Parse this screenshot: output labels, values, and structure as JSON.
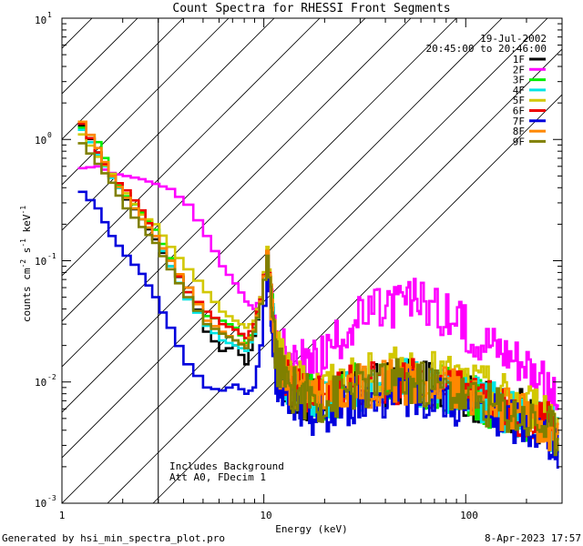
{
  "chart_data": {
    "type": "line",
    "title": "Count Spectra for RHESSI Front Segments",
    "xlabel": "Energy (keV)",
    "ylabel": {
      "base": "counts cm",
      "exp1": "-2",
      "mid": " s",
      "exp2": "-1",
      "tail": " keV",
      "exp3": "-1"
    },
    "x_scale": "log",
    "y_scale": "log",
    "xlim": [
      1,
      300
    ],
    "ylim": [
      0.001,
      10
    ],
    "x_tick_labels": [
      {
        "value": 1,
        "label": "1"
      },
      {
        "value": 10,
        "label": "10"
      },
      {
        "value": 100,
        "label": "100"
      }
    ],
    "y_tick_labels": [
      {
        "value": 0.001,
        "mantissa": "10",
        "exp": "-3"
      },
      {
        "value": 0.01,
        "mantissa": "10",
        "exp": "-2"
      },
      {
        "value": 0.1,
        "mantissa": "10",
        "exp": "-1"
      },
      {
        "value": 1,
        "mantissa": "10",
        "exp": "0"
      },
      {
        "value": 10,
        "mantissa": "10",
        "exp": "1"
      }
    ],
    "hatched_region_keV": [
      1,
      3
    ],
    "date": "19-Jul-2002",
    "time_range": "20:45:00 to 20:46:00",
    "annotations": [
      "Includes Background",
      "Att A0, FDecim 1"
    ],
    "footer_left": "Generated by hsi_min_spectra_plot.pro",
    "footer_right": "8-Apr-2023 17:57",
    "series": [
      {
        "name": "1F",
        "color": "#000000",
        "x": [
          1.2,
          1.45,
          1.7,
          2.0,
          2.4,
          2.8,
          3.3,
          4.0,
          5.0,
          6.0,
          7.0,
          8.0,
          8.8,
          9.5,
          10.3,
          10.8,
          11.5,
          13,
          15,
          17,
          20,
          25,
          30,
          40,
          50,
          60,
          80,
          100,
          130,
          160,
          200,
          250,
          290
        ],
        "y": [
          1.3,
          0.78,
          0.5,
          0.32,
          0.22,
          0.15,
          0.09,
          0.06,
          0.026,
          0.018,
          0.02,
          0.014,
          0.024,
          0.045,
          0.11,
          0.05,
          0.014,
          0.009,
          0.007,
          0.0075,
          0.0065,
          0.0085,
          0.009,
          0.0095,
          0.01,
          0.0095,
          0.009,
          0.0075,
          0.0065,
          0.006,
          0.0055,
          0.004,
          0.003
        ]
      },
      {
        "name": "2F",
        "color": "#ff00ff",
        "x": [
          1.2,
          1.45,
          1.7,
          2.0,
          2.4,
          2.8,
          3.3,
          4.0,
          5.0,
          6.0,
          7.0,
          8.0,
          8.8,
          9.5,
          10.3,
          10.8,
          11.5,
          13,
          15,
          17,
          20,
          25,
          30,
          40,
          50,
          60,
          80,
          100,
          130,
          160,
          200,
          250,
          290
        ],
        "y": [
          0.58,
          0.6,
          0.53,
          0.5,
          0.47,
          0.43,
          0.39,
          0.29,
          0.16,
          0.09,
          0.065,
          0.046,
          0.04,
          0.05,
          0.12,
          0.05,
          0.022,
          0.0185,
          0.0145,
          0.0135,
          0.0165,
          0.026,
          0.033,
          0.04,
          0.045,
          0.048,
          0.035,
          0.027,
          0.022,
          0.018,
          0.015,
          0.0085,
          0.0065
        ]
      },
      {
        "name": "3F",
        "color": "#00ee00",
        "x": [
          1.2,
          1.45,
          1.7,
          2.0,
          2.4,
          2.8,
          3.3,
          4.0,
          5.0,
          6.0,
          7.0,
          8.0,
          8.8,
          9.5,
          10.3,
          10.8,
          11.5,
          13,
          15,
          17,
          20,
          25,
          30,
          40,
          50,
          60,
          80,
          100,
          130,
          160,
          200,
          250,
          290
        ],
        "y": [
          1.25,
          0.95,
          0.52,
          0.34,
          0.25,
          0.18,
          0.105,
          0.055,
          0.035,
          0.032,
          0.028,
          0.021,
          0.028,
          0.048,
          0.12,
          0.05,
          0.017,
          0.01,
          0.0085,
          0.008,
          0.007,
          0.0085,
          0.0095,
          0.01,
          0.0105,
          0.0095,
          0.009,
          0.0075,
          0.0065,
          0.006,
          0.005,
          0.0045,
          0.0035
        ]
      },
      {
        "name": "4F",
        "color": "#00e5e5",
        "x": [
          1.2,
          1.45,
          1.7,
          2.0,
          2.4,
          2.8,
          3.3,
          4.0,
          5.0,
          6.0,
          7.0,
          8.0,
          8.8,
          9.5,
          10.3,
          10.8,
          11.5,
          13,
          15,
          17,
          20,
          25,
          30,
          40,
          50,
          60,
          80,
          100,
          130,
          160,
          200,
          250,
          290
        ],
        "y": [
          1.2,
          0.75,
          0.48,
          0.33,
          0.22,
          0.16,
          0.09,
          0.048,
          0.029,
          0.022,
          0.02,
          0.018,
          0.025,
          0.045,
          0.11,
          0.05,
          0.015,
          0.0095,
          0.008,
          0.0075,
          0.0065,
          0.0085,
          0.009,
          0.0095,
          0.01,
          0.0095,
          0.0088,
          0.0075,
          0.0065,
          0.0058,
          0.005,
          0.0044,
          0.0035
        ]
      },
      {
        "name": "5F",
        "color": "#d2c800",
        "x": [
          1.2,
          1.45,
          1.7,
          2.0,
          2.4,
          2.8,
          3.3,
          4.0,
          5.0,
          6.0,
          7.0,
          8.0,
          8.8,
          9.5,
          10.3,
          10.8,
          11.5,
          13,
          15,
          17,
          20,
          25,
          30,
          40,
          50,
          60,
          80,
          100,
          130,
          160,
          200,
          250,
          290
        ],
        "y": [
          1.1,
          0.72,
          0.52,
          0.36,
          0.24,
          0.2,
          0.13,
          0.085,
          0.055,
          0.038,
          0.032,
          0.028,
          0.032,
          0.05,
          0.13,
          0.055,
          0.02,
          0.012,
          0.0095,
          0.009,
          0.0085,
          0.01,
          0.011,
          0.012,
          0.0125,
          0.012,
          0.011,
          0.0095,
          0.0085,
          0.0075,
          0.0065,
          0.0055,
          0.0045
        ]
      },
      {
        "name": "6F",
        "color": "#ee0000",
        "x": [
          1.2,
          1.45,
          1.7,
          2.0,
          2.4,
          2.8,
          3.3,
          4.0,
          5.0,
          6.0,
          7.0,
          8.0,
          8.8,
          9.5,
          10.3,
          10.8,
          11.5,
          13,
          15,
          17,
          20,
          25,
          30,
          40,
          50,
          60,
          80,
          100,
          130,
          160,
          200,
          250,
          290
        ],
        "y": [
          1.35,
          0.78,
          0.5,
          0.38,
          0.26,
          0.16,
          0.1,
          0.055,
          0.038,
          0.03,
          0.027,
          0.023,
          0.03,
          0.048,
          0.12,
          0.052,
          0.016,
          0.0098,
          0.0085,
          0.008,
          0.0068,
          0.0086,
          0.0092,
          0.0098,
          0.0102,
          0.0096,
          0.009,
          0.0076,
          0.0066,
          0.006,
          0.0052,
          0.0045,
          0.0036
        ]
      },
      {
        "name": "7F",
        "color": "#0000dd",
        "x": [
          1.2,
          1.45,
          1.7,
          2.0,
          2.4,
          2.8,
          3.3,
          4.0,
          5.0,
          6.0,
          7.0,
          8.0,
          8.8,
          9.5,
          10.3,
          10.8,
          11.5,
          13,
          15,
          17,
          20,
          25,
          30,
          40,
          50,
          60,
          80,
          100,
          130,
          160,
          200,
          250,
          290
        ],
        "y": [
          0.37,
          0.27,
          0.16,
          0.11,
          0.078,
          0.05,
          0.028,
          0.014,
          0.009,
          0.0085,
          0.0095,
          0.008,
          0.009,
          0.02,
          0.09,
          0.035,
          0.011,
          0.0072,
          0.006,
          0.0055,
          0.005,
          0.0065,
          0.0072,
          0.0078,
          0.0082,
          0.0078,
          0.0072,
          0.006,
          0.0052,
          0.0048,
          0.0043,
          0.0036,
          0.003
        ]
      },
      {
        "name": "8F",
        "color": "#ff8800",
        "x": [
          1.2,
          1.45,
          1.7,
          2.0,
          2.4,
          2.8,
          3.3,
          4.0,
          5.0,
          6.0,
          7.0,
          8.0,
          8.8,
          9.5,
          10.3,
          10.8,
          11.5,
          13,
          15,
          17,
          20,
          25,
          30,
          40,
          50,
          60,
          80,
          100,
          130,
          160,
          200,
          250,
          290
        ],
        "y": [
          1.4,
          0.85,
          0.5,
          0.33,
          0.22,
          0.16,
          0.1,
          0.06,
          0.032,
          0.026,
          0.022,
          0.02,
          0.027,
          0.046,
          0.12,
          0.05,
          0.016,
          0.0098,
          0.0082,
          0.0078,
          0.0068,
          0.0087,
          0.0093,
          0.0097,
          0.0102,
          0.0096,
          0.009,
          0.0076,
          0.0066,
          0.006,
          0.0052,
          0.0045,
          0.0036
        ]
      },
      {
        "name": "9F",
        "color": "#808000",
        "x": [
          1.2,
          1.45,
          1.7,
          2.0,
          2.4,
          2.8,
          3.3,
          4.0,
          5.0,
          6.0,
          7.0,
          8.0,
          8.8,
          9.5,
          10.3,
          10.8,
          11.5,
          13,
          15,
          17,
          20,
          25,
          30,
          40,
          50,
          60,
          80,
          100,
          130,
          160,
          200,
          250,
          290
        ],
        "y": [
          0.93,
          0.63,
          0.44,
          0.27,
          0.19,
          0.14,
          0.085,
          0.05,
          0.03,
          0.025,
          0.022,
          0.019,
          0.026,
          0.044,
          0.11,
          0.048,
          0.015,
          0.0095,
          0.008,
          0.0076,
          0.0066,
          0.0085,
          0.0092,
          0.0096,
          0.01,
          0.0095,
          0.0088,
          0.0075,
          0.0065,
          0.0058,
          0.005,
          0.0044,
          0.0035
        ]
      }
    ]
  }
}
